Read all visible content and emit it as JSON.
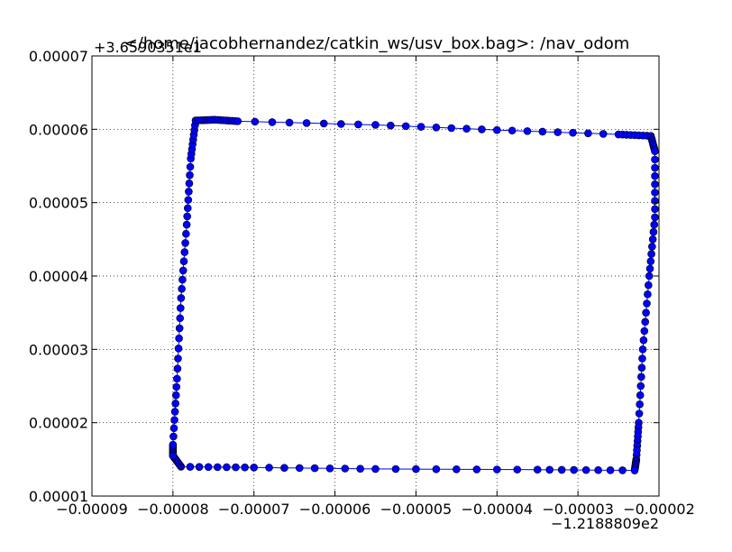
{
  "chart_data": {
    "type": "scatter",
    "title": "</home/jacobhernandez/catkin_ws/usv_box.bag>: /nav_odom",
    "xlabel": "",
    "ylabel": "",
    "x_tick_labels": [
      "−0.00009",
      "−0.00008",
      "−0.00007",
      "−0.00006",
      "−0.00005",
      "−0.00004",
      "−0.00003",
      "−0.00002"
    ],
    "y_tick_labels": [
      "0.00001",
      "0.00002",
      "0.00003",
      "0.00004",
      "0.00005",
      "0.00006",
      "0.00007"
    ],
    "x_offset_label": "−1.2188809e2",
    "y_offset_label": "+3.6590351e1",
    "xlim": [
      -9e-05,
      -2e-05
    ],
    "ylim": [
      1e-05,
      7e-05
    ],
    "grid": true,
    "line_color": "#0000ff",
    "marker_color": "#0000ff",
    "marker": "circle",
    "connected": true,
    "path_corners": [
      {
        "x": -8e-05,
        "y": 1.55e-05
      },
      {
        "x": -8e-05,
        "y": 1.7e-05
      },
      {
        "x": -7.95e-05,
        "y": 2.6e-05
      },
      {
        "x": -7.9e-05,
        "y": 3.7e-05
      },
      {
        "x": -7.83e-05,
        "y": 4.7e-05
      },
      {
        "x": -7.78e-05,
        "y": 5.6e-05
      },
      {
        "x": -7.72e-05,
        "y": 6.12e-05
      },
      {
        "x": -7.48e-05,
        "y": 6.13e-05
      },
      {
        "x": -7.2e-05,
        "y": 6.11e-05
      },
      {
        "x": -5.5e-05,
        "y": 6.06e-05
      },
      {
        "x": -4e-05,
        "y": 5.99e-05
      },
      {
        "x": -2.5e-05,
        "y": 5.93e-05
      },
      {
        "x": -2.1e-05,
        "y": 5.91e-05
      },
      {
        "x": -2.05e-05,
        "y": 5.7e-05
      },
      {
        "x": -2.05e-05,
        "y": 4.8e-05
      },
      {
        "x": -2.12e-05,
        "y": 4e-05
      },
      {
        "x": -2.2e-05,
        "y": 3e-05
      },
      {
        "x": -2.25e-05,
        "y": 2e-05
      },
      {
        "x": -2.28e-05,
        "y": 1.5e-05
      },
      {
        "x": -2.3e-05,
        "y": 1.35e-05
      },
      {
        "x": -3.5e-05,
        "y": 1.36e-05
      },
      {
        "x": -5.5e-05,
        "y": 1.37e-05
      },
      {
        "x": -7e-05,
        "y": 1.39e-05
      },
      {
        "x": -7.9e-05,
        "y": 1.4e-05
      },
      {
        "x": -8e-05,
        "y": 1.55e-05
      }
    ],
    "points_per_segment": 8
  }
}
